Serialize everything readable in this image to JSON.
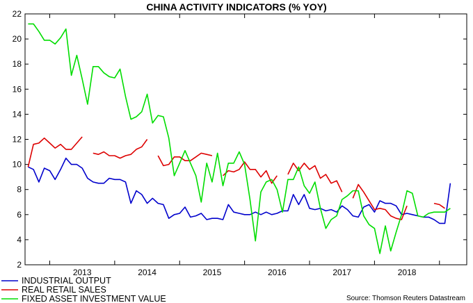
{
  "chart_data": {
    "type": "line",
    "title": "CHINA ACTIVITY INDICATORS (% YOY)",
    "source": "Source: Thomson Reuters Datastream",
    "ylim": [
      2,
      22
    ],
    "yticks": [
      "2",
      "4",
      "6",
      "8",
      "10",
      "12",
      "14",
      "16",
      "18",
      "20",
      "22"
    ],
    "xlim": [
      2012.62,
      2019.42
    ],
    "xticks": [
      "2013",
      "2014",
      "2015",
      "2016",
      "2017",
      "2018"
    ],
    "grid": false,
    "legend_position": "bottom-left",
    "series": [
      {
        "name": "INDUSTRIAL OUTPUT",
        "color": "#0000cc",
        "x": [
          2012.667,
          2012.75,
          2012.833,
          2012.917,
          2013.0,
          2013.083,
          2013.167,
          2013.25,
          2013.333,
          2013.417,
          2013.5,
          2013.583,
          2013.667,
          2013.75,
          2013.833,
          2013.917,
          2014.0,
          2014.083,
          2014.167,
          2014.25,
          2014.333,
          2014.417,
          2014.5,
          2014.583,
          2014.667,
          2014.75,
          2014.833,
          2014.917,
          2015.0,
          2015.083,
          2015.167,
          2015.25,
          2015.333,
          2015.417,
          2015.5,
          2015.583,
          2015.667,
          2015.75,
          2015.833,
          2015.917,
          2016.0,
          2016.083,
          2016.167,
          2016.25,
          2016.333,
          2016.417,
          2016.5,
          2016.583,
          2016.667,
          2016.75,
          2016.833,
          2016.917,
          2017.0,
          2017.083,
          2017.167,
          2017.25,
          2017.333,
          2017.417,
          2017.5,
          2017.583,
          2017.667,
          2017.75,
          2017.833,
          2017.917,
          2018.0,
          2018.083,
          2018.167,
          2018.25,
          2018.333,
          2018.417,
          2018.5,
          2018.583,
          2018.667,
          2018.75,
          2018.833,
          2018.917,
          2019.0,
          2019.083,
          2019.167
        ],
        "values": [
          9.8,
          9.6,
          8.6,
          9.7,
          9.5,
          8.8,
          9.6,
          10.5,
          10.0,
          10.0,
          9.7,
          8.9,
          8.6,
          8.5,
          8.5,
          8.9,
          8.8,
          8.8,
          8.6,
          6.9,
          7.9,
          7.6,
          6.9,
          7.3,
          6.9,
          6.8,
          5.7,
          6.0,
          6.1,
          6.6,
          5.8,
          5.9,
          6.1,
          5.6,
          5.7,
          5.7,
          5.6,
          6.8,
          6.2,
          6.1,
          6.0,
          6.0,
          6.2,
          6.0,
          6.2,
          6.0,
          6.1,
          6.3,
          6.3,
          7.6,
          6.8,
          7.6,
          6.5,
          6.4,
          6.5,
          6.3,
          6.4,
          6.2,
          6.7,
          6.4,
          5.9,
          5.8,
          6.6,
          6.8,
          6.2,
          7.1,
          6.9,
          6.9,
          6.7,
          6.0,
          6.1,
          6.0,
          5.9,
          5.8,
          5.8,
          5.6,
          5.3,
          5.3,
          8.5
        ]
      },
      {
        "name": "REAL RETAIL SALES",
        "color": "#dd0000",
        "x": [
          2012.667,
          2012.75,
          2012.833,
          2012.917,
          2013.0,
          2013.083,
          2013.167,
          2013.25,
          2013.333,
          2013.417,
          2013.5,
          null,
          2013.667,
          2013.75,
          2013.833,
          2013.917,
          2014.0,
          2014.083,
          2014.167,
          2014.25,
          2014.333,
          2014.417,
          2014.5,
          null,
          2014.667,
          2014.75,
          2014.833,
          2014.917,
          2015.0,
          2015.083,
          2015.167,
          2015.25,
          2015.333,
          2015.417,
          2015.5,
          null,
          2015.667,
          2015.75,
          2015.833,
          2015.917,
          2016.0,
          2016.083,
          2016.167,
          2016.25,
          2016.333,
          2016.417,
          2016.5,
          null,
          2016.667,
          2016.75,
          2016.833,
          2016.917,
          2017.0,
          2017.083,
          2017.167,
          2017.25,
          2017.333,
          2017.417,
          2017.5,
          null,
          2017.667,
          2017.75,
          2017.833,
          2017.917,
          2018.0,
          2018.083,
          2018.167,
          2018.25,
          2018.333,
          2018.417,
          2018.5,
          null,
          2018.917,
          2019.0,
          2019.083
        ],
        "values": [
          9.8,
          11.6,
          11.7,
          12.1,
          11.7,
          11.3,
          11.6,
          11.2,
          11.2,
          11.7,
          12.2,
          null,
          10.9,
          10.8,
          11.0,
          10.7,
          10.7,
          10.5,
          10.7,
          10.8,
          11.2,
          11.4,
          12.0,
          null,
          10.7,
          9.9,
          10.0,
          10.6,
          10.6,
          10.3,
          10.3,
          10.6,
          10.9,
          10.8,
          10.7,
          null,
          9.1,
          9.5,
          9.4,
          9.6,
          10.2,
          9.6,
          9.6,
          9.0,
          9.5,
          8.5,
          9.1,
          null,
          9.2,
          10.1,
          9.5,
          10.1,
          9.6,
          9.9,
          8.9,
          9.2,
          8.5,
          8.7,
          7.8,
          null,
          7.3,
          8.4,
          7.8,
          7.1,
          6.4,
          6.5,
          6.4,
          5.9,
          5.7,
          5.6,
          6.7,
          null,
          6.9,
          6.8,
          6.5
        ]
      },
      {
        "name": "FIXED ASSET INVESTMENT VALUE",
        "color": "#00dd00",
        "x": [
          2012.667,
          2012.75,
          2012.833,
          2012.917,
          2013.0,
          2013.083,
          2013.167,
          2013.25,
          2013.333,
          2013.417,
          2013.5,
          2013.583,
          2013.667,
          2013.75,
          2013.833,
          2013.917,
          2014.0,
          2014.083,
          2014.167,
          2014.25,
          2014.333,
          2014.417,
          2014.5,
          2014.583,
          2014.667,
          2014.75,
          2014.833,
          2014.917,
          2015.0,
          2015.083,
          2015.167,
          2015.25,
          2015.333,
          2015.417,
          2015.5,
          2015.583,
          2015.667,
          2015.75,
          2015.833,
          2015.917,
          2016.0,
          2016.083,
          2016.167,
          2016.25,
          2016.333,
          2016.417,
          2016.5,
          2016.583,
          2016.667,
          2016.75,
          2016.833,
          2016.917,
          2017.0,
          2017.083,
          2017.167,
          2017.25,
          2017.333,
          2017.417,
          2017.5,
          2017.583,
          2017.667,
          2017.75,
          2017.833,
          2017.917,
          2018.0,
          2018.083,
          2018.167,
          2018.25,
          2018.333,
          2018.417,
          2018.5,
          2018.583,
          2018.667,
          2018.75,
          2018.833,
          2018.917,
          2019.0,
          2019.083,
          2019.167
        ],
        "values": [
          21.2,
          21.2,
          20.6,
          19.9,
          19.9,
          19.6,
          20.1,
          20.8,
          17.1,
          18.7,
          16.8,
          14.8,
          17.8,
          17.8,
          17.3,
          17.0,
          16.9,
          17.6,
          15.4,
          13.6,
          13.8,
          14.2,
          15.6,
          13.3,
          13.9,
          13.8,
          12.1,
          9.1,
          10.1,
          11.1,
          10.1,
          9.1,
          7.0,
          10.1,
          8.6,
          10.9,
          8.3,
          10.1,
          10.1,
          11.0,
          10.0,
          7.2,
          3.9,
          7.8,
          8.6,
          8.8,
          8.0,
          6.2,
          8.8,
          8.8,
          9.8,
          8.3,
          7.7,
          8.6,
          6.5,
          4.9,
          5.6,
          5.9,
          7.2,
          7.5,
          7.9,
          7.9,
          5.9,
          5.2,
          4.9,
          2.9,
          5.1,
          3.1,
          4.6,
          6.0,
          7.9,
          7.7,
          5.9,
          5.8,
          6.1,
          6.2,
          6.2,
          6.2,
          6.5
        ]
      }
    ]
  }
}
